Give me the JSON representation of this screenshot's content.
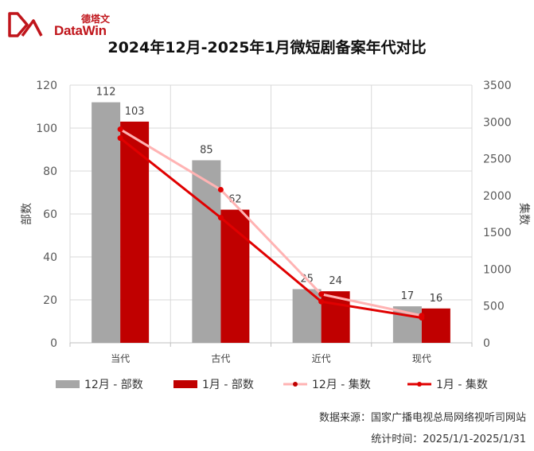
{
  "brand": {
    "cn": "德塔文",
    "en": "DataWin",
    "color": "#c0151b"
  },
  "title": "2024年12月-2025年1月微短剧备案年代对比",
  "chart_data": {
    "type": "bar",
    "categories": [
      "当代",
      "古代",
      "近代",
      "现代"
    ],
    "ylabel_left": "部数",
    "ylabel_right": "集数",
    "ylim_left": [
      0,
      120
    ],
    "yticks_left": [
      0,
      20,
      40,
      60,
      80,
      100,
      120
    ],
    "ylim_right": [
      0,
      3500
    ],
    "yticks_right": [
      0,
      500,
      1000,
      1500,
      2000,
      2500,
      3000,
      3500
    ],
    "grid": true,
    "legend_position": "bottom",
    "series": [
      {
        "name": "12月 - 部数",
        "kind": "bar",
        "axis": "left",
        "color": "#a6a6a6",
        "values": [
          112,
          85,
          25,
          17
        ]
      },
      {
        "name": "1月 - 部数",
        "kind": "bar",
        "axis": "left",
        "color": "#c00000",
        "values": [
          103,
          62,
          24,
          16
        ]
      },
      {
        "name": "12月 - 集数",
        "kind": "line",
        "axis": "right",
        "color": "#ffb3b3",
        "values": [
          2900,
          2080,
          660,
          370
        ]
      },
      {
        "name": "1月 - 集数",
        "kind": "line",
        "axis": "right",
        "color": "#e00000",
        "values": [
          2780,
          1700,
          560,
          340
        ]
      }
    ]
  },
  "footer": {
    "source": "数据来源：国家广播电视总局网络视听司网站",
    "period": "统计时间：2025/1/1-2025/1/31"
  }
}
